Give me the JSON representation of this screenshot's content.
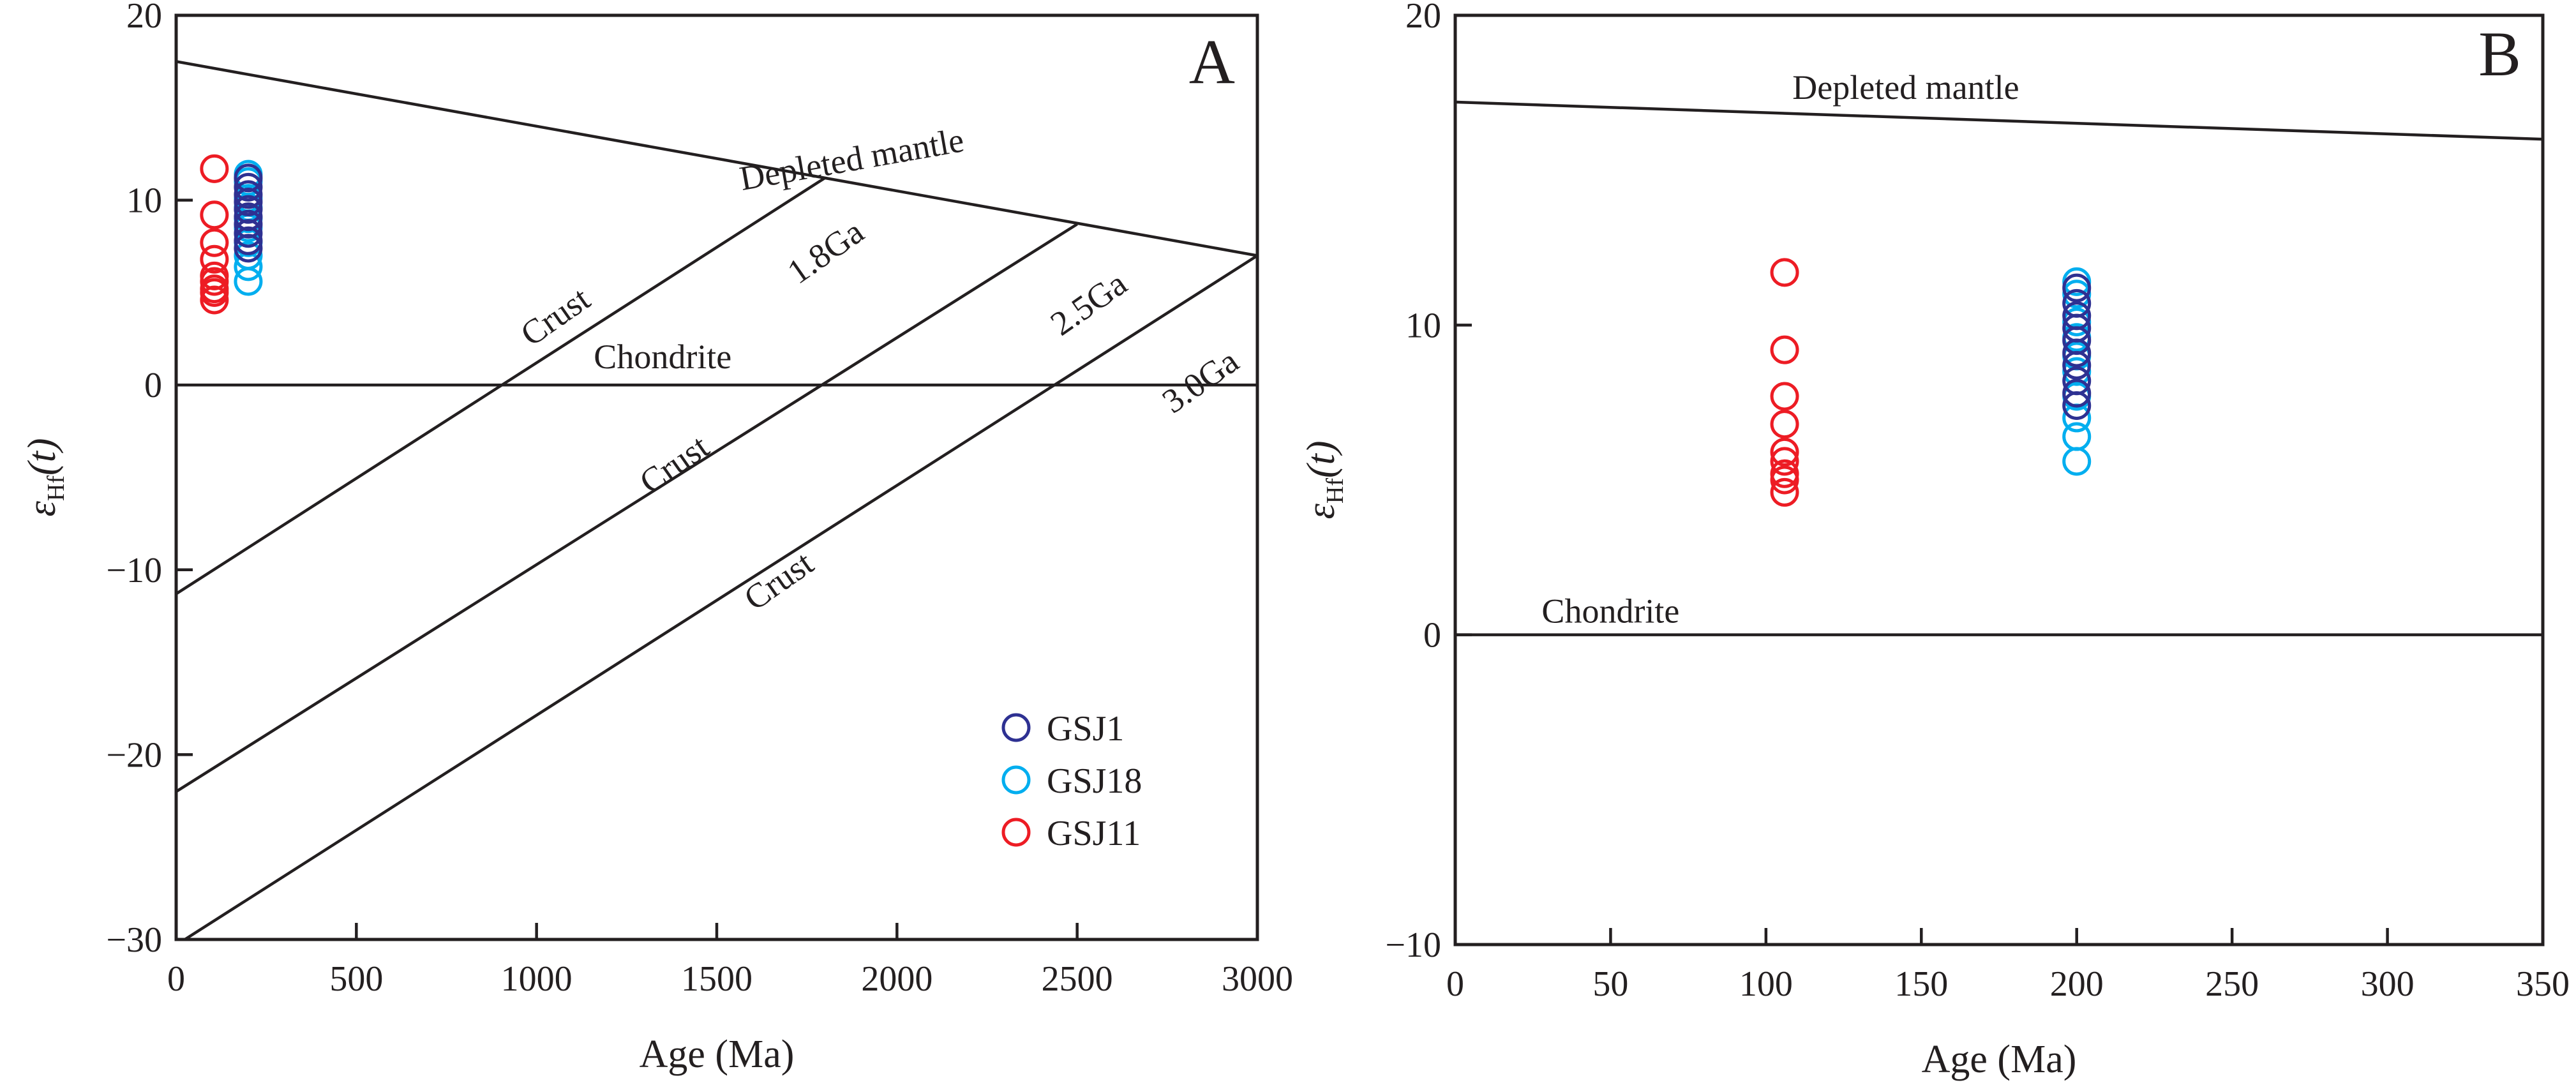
{
  "colors": {
    "GSJ1": "#2e3192",
    "GSJ18": "#00aeef",
    "GSJ11": "#ed1c24",
    "ink": "#231f20"
  },
  "chart_data": [
    {
      "type": "scatter",
      "panel": "A",
      "xlabel": "Age (Ma)",
      "ylabel_main": "ε",
      "ylabel_sub": "Hf",
      "ylabel_arg": "(t)",
      "xlim": [
        0,
        3000
      ],
      "ylim": [
        -30,
        20
      ],
      "xticks": [
        0,
        500,
        1000,
        1500,
        2000,
        2500,
        3000
      ],
      "yticks": [
        -30,
        -20,
        -10,
        0,
        10,
        20
      ],
      "x_tick_labels": [
        "0",
        "500",
        "1000",
        "1500",
        "2000",
        "2500",
        "3000"
      ],
      "y_tick_labels": [
        "−30",
        "−20",
        "−10",
        "0",
        "10",
        "20"
      ],
      "grid": false,
      "legend_position": "bottom-right",
      "reference_lines": [
        {
          "name": "Depleted mantle",
          "points": [
            [
              0,
              17.5
            ],
            [
              3000,
              7
            ]
          ]
        },
        {
          "name": "Chondrite",
          "points": [
            [
              0,
              0
            ],
            [
              3000,
              0
            ]
          ]
        },
        {
          "name": "Crust 1.8Ga",
          "points": [
            [
              0,
              -11.3
            ],
            [
              1800,
              11.2
            ]
          ]
        },
        {
          "name": "Crust 2.5Ga",
          "points": [
            [
              0,
              -22
            ],
            [
              2500,
              8.7
            ]
          ]
        },
        {
          "name": "Crust 3.0Ga",
          "points": [
            [
              0,
              -30.3
            ],
            [
              3000,
              7
            ]
          ]
        }
      ],
      "annotations": [
        {
          "text": "Depleted mantle",
          "x": 1880,
          "y": 11.6,
          "angle": -10
        },
        {
          "text": "Chondrite",
          "x": 1350,
          "y": 0.9,
          "angle": 0
        },
        {
          "text": "Crust",
          "x": 1070,
          "y": 3.2,
          "angle": -35
        },
        {
          "text": "1.8Ga",
          "x": 1820,
          "y": 6.7,
          "angle": -35
        },
        {
          "text": "Crust",
          "x": 1400,
          "y": -4.8,
          "angle": -35
        },
        {
          "text": "2.5Ga",
          "x": 2550,
          "y": 3.9,
          "angle": -35
        },
        {
          "text": "Crust",
          "x": 1690,
          "y": -11.1,
          "angle": -35
        },
        {
          "text": "3.0Ga",
          "x": 2860,
          "y": -0.3,
          "angle": -35
        }
      ],
      "series": [
        {
          "name": "GSJ1",
          "points": [
            [
              200,
              11.2
            ],
            [
              200,
              10.7
            ],
            [
              200,
              10.3
            ],
            [
              200,
              9.9
            ],
            [
              200,
              9.5
            ],
            [
              200,
              9.1
            ],
            [
              200,
              8.7
            ],
            [
              200,
              8.2
            ],
            [
              200,
              7.8
            ],
            [
              200,
              7.4
            ]
          ]
        },
        {
          "name": "GSJ18",
          "points": [
            [
              200,
              11.4
            ],
            [
              200,
              11.0
            ],
            [
              200,
              10.1
            ],
            [
              200,
              9.6
            ],
            [
              200,
              9.0
            ],
            [
              200,
              8.5
            ],
            [
              200,
              7.7
            ],
            [
              200,
              7.0
            ],
            [
              200,
              6.4
            ],
            [
              200,
              5.6
            ]
          ]
        },
        {
          "name": "GSJ11",
          "points": [
            [
              106,
              11.7
            ],
            [
              106,
              9.2
            ],
            [
              106,
              7.7
            ],
            [
              106,
              6.8
            ],
            [
              106,
              5.9
            ],
            [
              106,
              5.6
            ],
            [
              106,
              5.2
            ],
            [
              106,
              5.0
            ],
            [
              106,
              4.6
            ]
          ]
        }
      ]
    },
    {
      "type": "scatter",
      "panel": "B",
      "xlabel": "Age (Ma)",
      "ylabel_main": "ε",
      "ylabel_sub": "Hf",
      "ylabel_arg": "(t)",
      "xlim": [
        0,
        350
      ],
      "ylim": [
        -10,
        20
      ],
      "xticks": [
        0,
        50,
        100,
        150,
        200,
        250,
        300,
        350
      ],
      "yticks": [
        -10,
        0,
        10,
        20
      ],
      "x_tick_labels": [
        "0",
        "50",
        "100",
        "150",
        "200",
        "250",
        "300",
        "350"
      ],
      "y_tick_labels": [
        "−10",
        "0",
        "10",
        "20"
      ],
      "grid": false,
      "reference_lines": [
        {
          "name": "Depleted mantle",
          "points": [
            [
              0,
              17.2
            ],
            [
              350,
              16.0
            ]
          ]
        },
        {
          "name": "Chondrite",
          "points": [
            [
              0,
              0
            ],
            [
              350,
              0
            ]
          ]
        }
      ],
      "annotations": [
        {
          "text": "Depleted mantle",
          "x": 145,
          "y": 17.3,
          "angle": 0
        },
        {
          "text": "Chondrite",
          "x": 50,
          "y": 0.4,
          "angle": 0
        }
      ],
      "series": [
        {
          "name": "GSJ1",
          "points": [
            [
              200,
              11.2
            ],
            [
              200,
              10.7
            ],
            [
              200,
              10.3
            ],
            [
              200,
              9.9
            ],
            [
              200,
              9.5
            ],
            [
              200,
              9.1
            ],
            [
              200,
              8.7
            ],
            [
              200,
              8.2
            ],
            [
              200,
              7.8
            ],
            [
              200,
              7.4
            ]
          ]
        },
        {
          "name": "GSJ18",
          "points": [
            [
              200,
              11.4
            ],
            [
              200,
              11.0
            ],
            [
              200,
              10.1
            ],
            [
              200,
              9.6
            ],
            [
              200,
              9.0
            ],
            [
              200,
              8.5
            ],
            [
              200,
              7.7
            ],
            [
              200,
              7.0
            ],
            [
              200,
              6.4
            ],
            [
              200,
              5.6
            ]
          ]
        },
        {
          "name": "GSJ11",
          "points": [
            [
              106,
              11.7
            ],
            [
              106,
              9.2
            ],
            [
              106,
              7.7
            ],
            [
              106,
              6.8
            ],
            [
              106,
              5.9
            ],
            [
              106,
              5.6
            ],
            [
              106,
              5.2
            ],
            [
              106,
              5.0
            ],
            [
              106,
              4.6
            ]
          ]
        }
      ]
    }
  ]
}
